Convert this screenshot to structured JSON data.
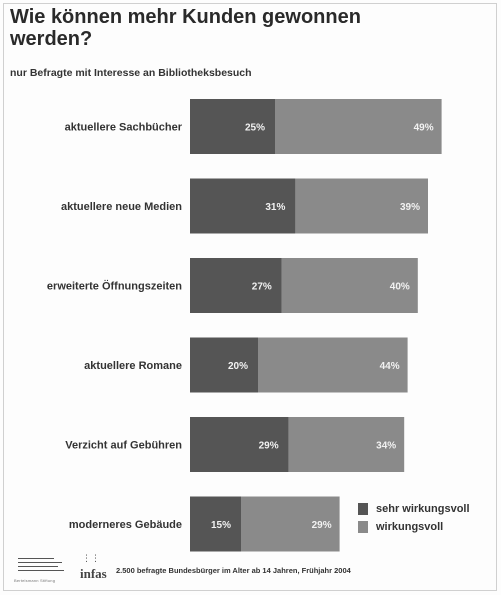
{
  "header": {
    "title": "Wie können mehr Kunden gewonnen werden?",
    "subtitle": "nur Befragte mit Interesse an Bibliotheksbesuch"
  },
  "colors": {
    "sehr_wirkungsvoll": "#555555",
    "wirkungsvoll": "#8a8a8a"
  },
  "chart_data": {
    "type": "bar",
    "orientation": "horizontal",
    "stacked": true,
    "categories": [
      "aktuellere Sachbücher",
      "aktuellere neue Medien",
      "erweiterte Öffnungszeiten",
      "aktuellere Romane",
      "Verzicht auf Gebühren",
      "moderneres Gebäude"
    ],
    "series": [
      {
        "name": "sehr wirkungsvoll",
        "values": [
          25,
          31,
          27,
          20,
          29,
          15
        ],
        "labels": [
          "25%",
          "31%",
          "27%",
          "20%",
          "29%",
          "15%"
        ]
      },
      {
        "name": "wirkungsvoll",
        "values": [
          49,
          39,
          40,
          44,
          34,
          29
        ],
        "labels": [
          "49%",
          "39%",
          "40%",
          "44%",
          "34%",
          "29%"
        ]
      }
    ],
    "xlim": [
      0,
      74
    ],
    "grid": false,
    "legend_position": "bottom-right"
  },
  "legend": {
    "items": [
      "sehr wirkungsvoll",
      "wirkungsvoll"
    ]
  },
  "footer": {
    "logo1_text": "Bertelsmann Stiftung",
    "logo2_text": "infas",
    "source": "2.500 befragte Bundesbürger im Alter ab 14 Jahren, Frühjahr 2004"
  }
}
